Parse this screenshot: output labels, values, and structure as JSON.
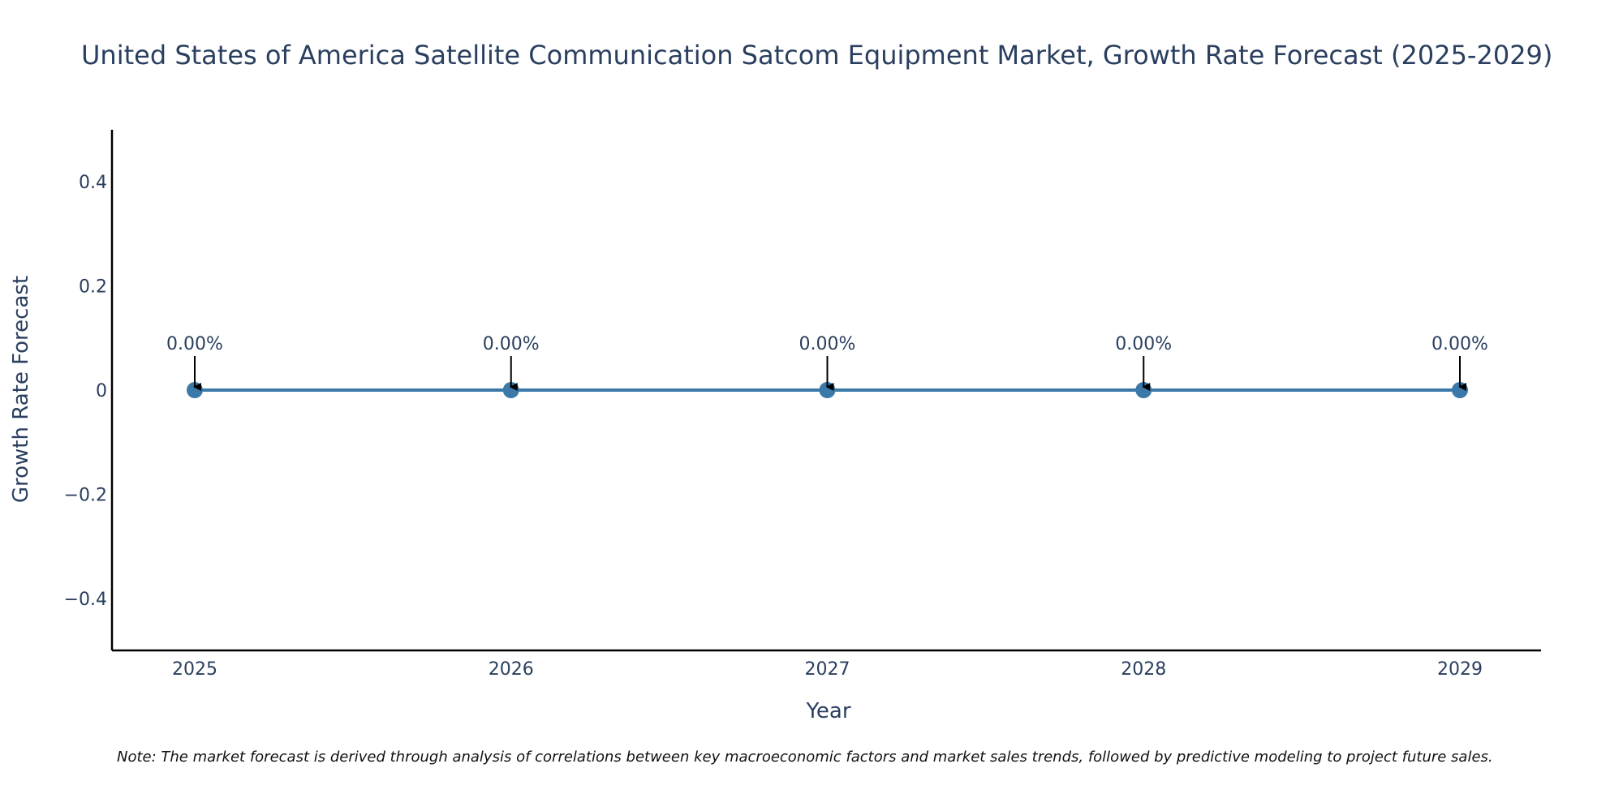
{
  "chart_data": {
    "type": "line",
    "title": "United States of America Satellite Communication Satcom Equipment Market, Growth Rate Forecast (2025-2029)",
    "xlabel": "Year",
    "ylabel": "Growth Rate Forecast",
    "x": [
      "2025",
      "2026",
      "2027",
      "2028",
      "2029"
    ],
    "series": [
      {
        "values": [
          0,
          0,
          0,
          0,
          0
        ],
        "labels": [
          "0.00%",
          "0.00%",
          "0.00%",
          "0.00%",
          "0.00%"
        ]
      }
    ],
    "yticks": [
      0.4,
      0.2,
      0,
      -0.2,
      -0.4
    ],
    "ytick_labels": [
      "0.4",
      "0.2",
      "0",
      "−0.2",
      "−0.4"
    ],
    "ylim": [
      -0.5,
      0.5
    ],
    "grid": false,
    "legend": "none",
    "line_color": "#3b79a8",
    "marker_color": "#3b79a8",
    "arrow_color": "#000000",
    "note": "Note: The market forecast is derived through analysis of correlations between key macroeconomic factors and market sales trends, followed by predictive modeling to project future sales."
  }
}
